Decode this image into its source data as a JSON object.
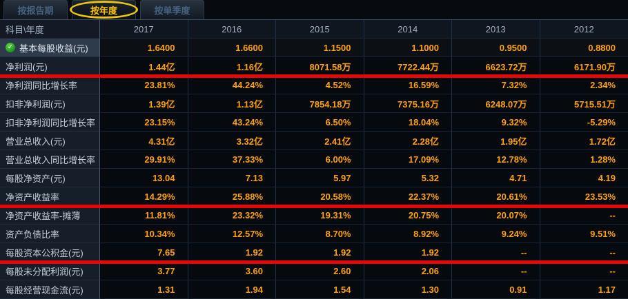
{
  "tabs": [
    {
      "label": "按报告期",
      "selected": false
    },
    {
      "label": "按年度",
      "selected": true
    },
    {
      "label": "按单季度",
      "selected": false
    }
  ],
  "table": {
    "corner_header": "科目\\年度",
    "year_columns": [
      "2017",
      "2016",
      "2015",
      "2014",
      "2013",
      "2012"
    ],
    "more_years_icon": "»",
    "rows": [
      {
        "label": "基本每股收益(元)",
        "checked": true,
        "highlighted": true,
        "values": [
          "1.6400",
          "1.6600",
          "1.1500",
          "1.1000",
          "0.9500",
          "0.8800"
        ]
      },
      {
        "label": "净利润(元)",
        "red_underline": true,
        "values": [
          "1.44亿",
          "1.16亿",
          "8071.58万",
          "7722.44万",
          "6623.72万",
          "6171.90万"
        ]
      },
      {
        "label": "净利润同比增长率",
        "values": [
          "23.81%",
          "44.24%",
          "4.52%",
          "16.59%",
          "7.32%",
          "2.34%"
        ]
      },
      {
        "label": "扣非净利润(元)",
        "values": [
          "1.39亿",
          "1.13亿",
          "7854.18万",
          "7375.16万",
          "6248.07万",
          "5715.51万"
        ]
      },
      {
        "label": "扣非净利润同比增长率",
        "values": [
          "23.15%",
          "43.24%",
          "6.50%",
          "18.04%",
          "9.32%",
          "-5.29%"
        ]
      },
      {
        "label": "营业总收入(元)",
        "values": [
          "4.31亿",
          "3.32亿",
          "2.41亿",
          "2.28亿",
          "1.95亿",
          "1.72亿"
        ]
      },
      {
        "label": "营业总收入同比增长率",
        "values": [
          "29.91%",
          "37.33%",
          "6.00%",
          "17.09%",
          "12.78%",
          "1.28%"
        ]
      },
      {
        "label": "每股净资产(元)",
        "values": [
          "13.04",
          "7.13",
          "5.97",
          "5.32",
          "4.71",
          "4.19"
        ]
      },
      {
        "label": "净资产收益率",
        "red_underline": true,
        "values": [
          "14.29%",
          "25.88%",
          "20.58%",
          "22.37%",
          "20.61%",
          "23.53%"
        ]
      },
      {
        "label": "净资产收益率-摊薄",
        "values": [
          "11.81%",
          "23.32%",
          "19.31%",
          "20.75%",
          "20.07%",
          "--"
        ]
      },
      {
        "label": "资产负债比率",
        "values": [
          "10.34%",
          "12.57%",
          "8.70%",
          "8.92%",
          "9.24%",
          "9.51%"
        ]
      },
      {
        "label": "每股资本公积金(元)",
        "red_underline": true,
        "values": [
          "7.65",
          "1.92",
          "1.92",
          "1.92",
          "--",
          "--"
        ]
      },
      {
        "label": "每股未分配利润(元)",
        "values": [
          "3.77",
          "3.60",
          "2.60",
          "2.06",
          "--",
          "--"
        ]
      },
      {
        "label": "每股经营现金流(元)",
        "values": [
          "1.31",
          "1.94",
          "1.54",
          "1.30",
          "0.91",
          "1.17"
        ]
      }
    ]
  },
  "colors": {
    "value_orange": "#ffa30f",
    "annotation_red": "#e60606",
    "selected_tab_yellow": "#ffc400",
    "check_green": "#1d9422",
    "label_column_bg": "#161e29",
    "highlighted_row_bg": "#2e3b4a"
  }
}
